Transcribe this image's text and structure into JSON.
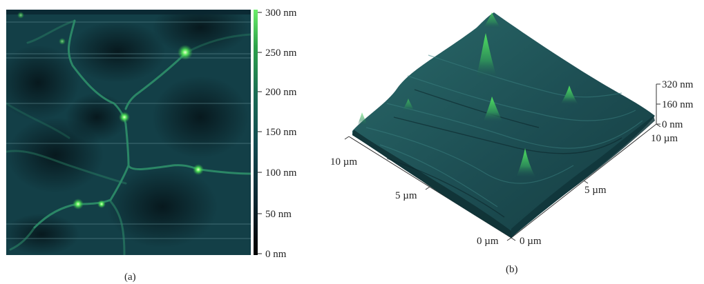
{
  "panel_a": {
    "caption": "(a)",
    "colorbar": {
      "ticks": [
        "300 nm",
        "250 nm",
        "200 nm",
        "150 nm",
        "100 nm",
        "50 nm",
        "0 nm"
      ],
      "range_nm": [
        0,
        300
      ],
      "colors": [
        "#000000",
        "#0c2630",
        "#124a50",
        "#1a6b55",
        "#2da24a",
        "#6bee6a"
      ]
    }
  },
  "panel_b": {
    "caption": "(b)",
    "z_ticks": [
      "320 nm",
      "160 nm",
      "0 nm"
    ],
    "left_axis_ticks": [
      "10 µm",
      "5 µm",
      "0 µm"
    ],
    "right_axis_ticks": [
      "0 µm",
      "5 µm",
      "10 µm"
    ],
    "surface_color": "#1d4e53",
    "peak_color": "#3cc45a"
  }
}
